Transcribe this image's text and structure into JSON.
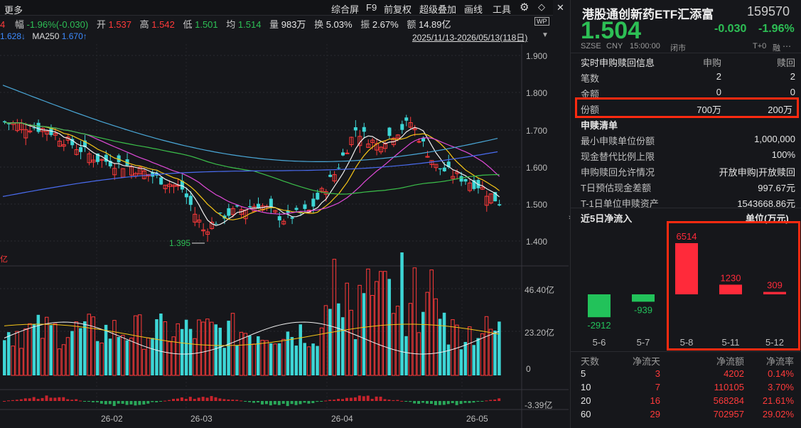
{
  "toolbar": {
    "more": "更多",
    "buttons": [
      "综合屏",
      "F9",
      "前复权",
      "超级叠加",
      "画线",
      "工具"
    ],
    "gear": "⚙",
    "bell": "◇",
    "close": "✕"
  },
  "quote_line": {
    "lead": "4",
    "change_label": "幅",
    "change_value": "-1.96%(-0.030)",
    "open_label": "开",
    "open_value": "1.537",
    "high_label": "高",
    "high_value": "1.542",
    "low_label": "低",
    "low_value": "1.501",
    "avg_label": "均",
    "avg_value": "1.514",
    "vol_label": "量",
    "vol_value": "983万",
    "turnover_label": "换",
    "turnover_value": "5.03%",
    "amp_label": "振",
    "amp_value": "2.67%",
    "amount_label": "额",
    "amount_value": "14.89亿",
    "wp": "WP"
  },
  "ma_line": {
    "ma_value": "1.628",
    "ma_arrow": "↓",
    "ma250_label": "MA250",
    "ma250_value": "1.670",
    "ma250_arrow": "↑"
  },
  "date_range": "2025/11/13-2026/05/13(118日)",
  "price_axis": [
    "1.900",
    "1.800",
    "1.700",
    "1.600",
    "1.500",
    "1.400"
  ],
  "low_marker": "1.395",
  "volume_axis": [
    "46.40亿",
    "23.20亿",
    "0"
  ],
  "macd_axis": "-3.39亿",
  "yi_label": "亿",
  "date_axis": [
    "26-02",
    "26-03",
    "26-04",
    "26-05"
  ],
  "header": {
    "name": "港股通创新药ETF汇添富",
    "code": "159570",
    "price": "1.504",
    "change": "-0.030",
    "change_pct": "-1.96%",
    "market": "SZSE",
    "currency": "CNY",
    "time": "15:00:00",
    "status": "闭市",
    "t0": "T+0",
    "rong": "融"
  },
  "realtime": {
    "title": "实时申购赎回信息",
    "col_sub": "申购",
    "col_red": "赎回",
    "rows": [
      {
        "label": "笔数",
        "sub": "2",
        "red": "2"
      },
      {
        "label": "金额",
        "sub": "0",
        "red": "0"
      },
      {
        "label": "份额",
        "sub": "700万",
        "red": "200万"
      }
    ]
  },
  "redemption_list": {
    "title": "申赎清单",
    "rows": [
      {
        "label": "最小申赎单位份额",
        "value": "1,000,000"
      },
      {
        "label": "现金替代比例上限",
        "value": "100%"
      },
      {
        "label": "申购赎回允许情况",
        "value": "开放申购|开放赎回"
      },
      {
        "label": "T日预估现金差额",
        "value": "997.67元"
      },
      {
        "label": "T-1日单位申赎资产",
        "value": "1543668.86元"
      }
    ]
  },
  "netflow": {
    "title": "近5日净流入",
    "unit": "单位(万元)"
  },
  "chart_data": {
    "type": "bar",
    "categories": [
      "5-6",
      "5-7",
      "5-8",
      "5-11",
      "5-12"
    ],
    "values": [
      -2912,
      -939,
      6514,
      1230,
      309
    ],
    "labels": [
      "-2912",
      "-939",
      "6514",
      "1230",
      "309"
    ],
    "colors": {
      "positive": "#ff2a3a",
      "negative": "#22c25a"
    }
  },
  "flow_table": {
    "headers": [
      "天数",
      "净流天",
      "净流额",
      "净流率"
    ],
    "rows": [
      {
        "days": "5",
        "flow_days": "3",
        "amount": "4202",
        "rate": "0.14%"
      },
      {
        "days": "10",
        "flow_days": "7",
        "amount": "110105",
        "rate": "3.70%"
      },
      {
        "days": "20",
        "flow_days": "16",
        "amount": "568284",
        "rate": "21.61%"
      },
      {
        "days": "60",
        "flow_days": "29",
        "amount": "702957",
        "rate": "29.02%"
      }
    ]
  }
}
